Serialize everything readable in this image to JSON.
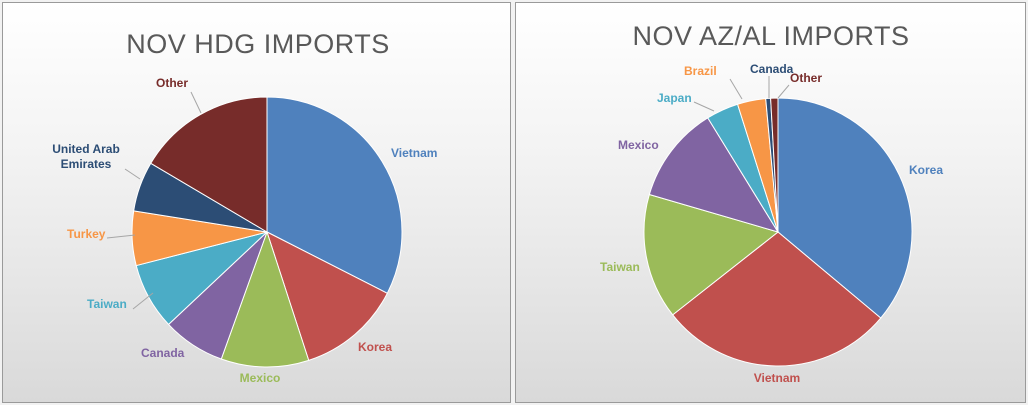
{
  "chart_data": [
    {
      "type": "pie",
      "title": "NOV HDG IMPORTS",
      "start_angle_deg": 0,
      "slices": [
        {
          "label": "Vietnam",
          "value": 32.5,
          "color": "#4F81BD"
        },
        {
          "label": "Korea",
          "value": 12.5,
          "color": "#C0504D"
        },
        {
          "label": "Mexico",
          "value": 10.5,
          "color": "#9BBB59"
        },
        {
          "label": "Canada",
          "value": 7.5,
          "color": "#8064A2"
        },
        {
          "label": "Taiwan",
          "value": 8.0,
          "color": "#4BACC6"
        },
        {
          "label": "Turkey",
          "value": 6.5,
          "color": "#F79646"
        },
        {
          "label": "United Arab Emirates",
          "label_lines": [
            "United Arab",
            "Emirates"
          ],
          "value": 6.0,
          "color": "#2C4D75"
        },
        {
          "label": "Other",
          "value": 16.5,
          "color": "#772C2A"
        }
      ]
    },
    {
      "type": "pie",
      "title": "NOV AZ/AL IMPORTS",
      "start_angle_deg": 0,
      "slices": [
        {
          "label": "Korea",
          "value": 37.0,
          "color": "#4F81BD"
        },
        {
          "label": "Vietnam",
          "value": 29.0,
          "color": "#C0504D"
        },
        {
          "label": "Taiwan",
          "value": 15.5,
          "color": "#9BBB59"
        },
        {
          "label": "Mexico",
          "value": 12.0,
          "color": "#8064A2"
        },
        {
          "label": "Japan",
          "value": 4.0,
          "color": "#4BACC6"
        },
        {
          "label": "Brazil",
          "value": 3.5,
          "color": "#F79646"
        },
        {
          "label": "Canada",
          "value": 0.6,
          "color": "#2C4D75"
        },
        {
          "label": "Other",
          "value": 0.9,
          "color": "#772C2A"
        }
      ]
    }
  ]
}
